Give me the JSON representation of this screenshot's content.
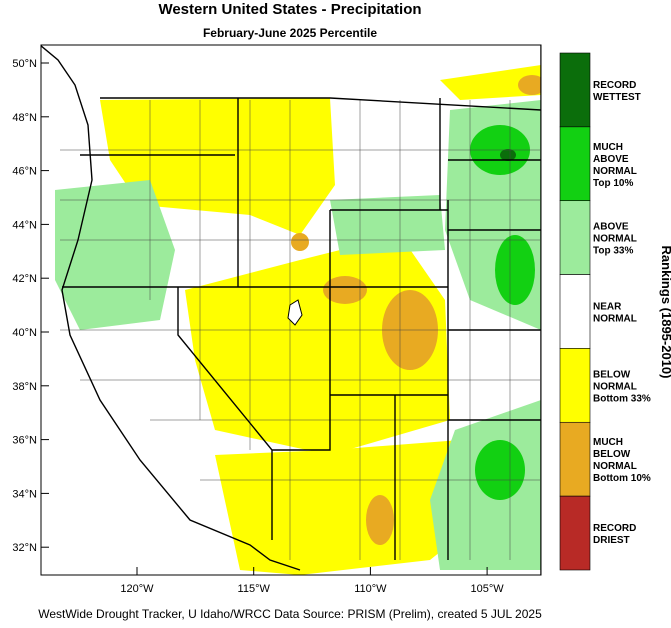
{
  "title": "Western United States - Precipitation",
  "subtitle": "February-June 2025 Percentile",
  "lat_ticks": [
    "50°N",
    "48°N",
    "46°N",
    "44°N",
    "42°N",
    "40°N",
    "38°N",
    "36°N",
    "34°N",
    "32°N"
  ],
  "lon_ticks": [
    "120°W",
    "115°W",
    "110°W",
    "105°W"
  ],
  "legend_title": "Rankings (1895-2010)",
  "legend": [
    {
      "lines": [
        "RECORD",
        "WETTEST"
      ],
      "color": "#0b6e0b"
    },
    {
      "lines": [
        "MUCH",
        "ABOVE",
        "NORMAL",
        "Top 10%"
      ],
      "color": "#12d012"
    },
    {
      "lines": [
        "ABOVE",
        "NORMAL",
        "Top 33%"
      ],
      "color": "#9ceb9c"
    },
    {
      "lines": [
        "NEAR",
        "NORMAL"
      ],
      "color": "#ffffff"
    },
    {
      "lines": [
        "BELOW",
        "NORMAL",
        "Bottom 33%"
      ],
      "color": "#ffff00"
    },
    {
      "lines": [
        "MUCH",
        "BELOW",
        "NORMAL",
        "Bottom 10%"
      ],
      "color": "#e8aa22"
    },
    {
      "lines": [
        "RECORD",
        "DRIEST"
      ],
      "color": "#b82a26"
    }
  ],
  "footer": "WestWide Drought Tracker, U Idaho/WRCC Data Source: PRISM (Prelim), created  5 JUL 2025"
}
